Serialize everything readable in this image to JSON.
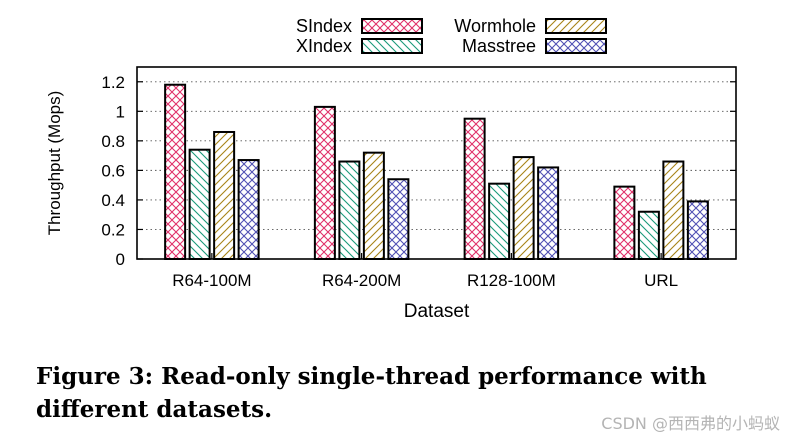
{
  "chart_data": {
    "type": "bar",
    "categories": [
      "R64-100M",
      "R64-200M",
      "R128-100M",
      "URL"
    ],
    "series": [
      {
        "name": "SIndex",
        "values": [
          1.18,
          1.03,
          0.95,
          0.49
        ],
        "color": "#e0306a",
        "pattern": "crosshatch"
      },
      {
        "name": "XIndex",
        "values": [
          0.74,
          0.66,
          0.51,
          0.32
        ],
        "color": "#1a9a7a",
        "pattern": "backslash"
      },
      {
        "name": "Wormhole",
        "values": [
          0.86,
          0.72,
          0.69,
          0.66
        ],
        "color": "#a88418",
        "pattern": "slash"
      },
      {
        "name": "Masstree",
        "values": [
          0.67,
          0.54,
          0.62,
          0.39
        ],
        "color": "#5050b4",
        "pattern": "crosshatch"
      }
    ],
    "title": "",
    "xlabel": "Dataset",
    "ylabel": "Throughput (Mops)",
    "ylim": [
      0,
      1.3
    ],
    "yticks": [
      "0",
      "0.2",
      "0.4",
      "0.6",
      "0.8",
      "1",
      "1.2"
    ],
    "grid": true,
    "legend": "top-center"
  },
  "caption": "Figure 3: Read-only single-thread performance with different datasets.",
  "watermark": "CSDN @西西弗的小蚂蚁"
}
